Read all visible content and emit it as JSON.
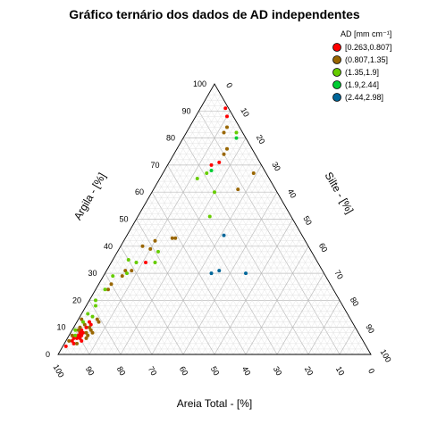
{
  "chart_data": {
    "type": "scatter",
    "subtype": "ternary",
    "title": "Gráfico ternário dos dados de AD independentes",
    "axes": {
      "left": {
        "label": "Argila - [%]",
        "ticks": [
          "0",
          "10",
          "20",
          "30",
          "40",
          "50",
          "60",
          "70",
          "80",
          "90",
          "100"
        ]
      },
      "right": {
        "label": "Silte - [%]",
        "ticks": [
          "0",
          "10",
          "20",
          "30",
          "40",
          "50",
          "60",
          "70",
          "80",
          "90",
          "100"
        ]
      },
      "bottom": {
        "label": "Areia Total - [%]",
        "ticks": [
          "100",
          "90",
          "80",
          "70",
          "60",
          "50",
          "40",
          "30",
          "20",
          "10",
          "0"
        ]
      },
      "range": [
        0,
        100
      ],
      "grid": true
    },
    "legend": {
      "title": "AD [mm cm⁻¹]",
      "placement": "top-right",
      "items": [
        {
          "label": "[0.263,0.807]",
          "color": "#ff0000"
        },
        {
          "label": "(0.807,1.35]",
          "color": "#996600"
        },
        {
          "label": "(1.35,1.9]",
          "color": "#66cc00"
        },
        {
          "label": "(1.9,2.44]",
          "color": "#00cc33"
        },
        {
          "label": "(2.44,2.98]",
          "color": "#006699"
        }
      ]
    },
    "series": [
      {
        "name": "[0.263,0.807]",
        "color": "#ff0000",
        "points": [
          {
            "clay": 91,
            "silt": 8
          },
          {
            "clay": 88,
            "silt": 10
          },
          {
            "clay": 70,
            "silt": 14
          },
          {
            "clay": 71,
            "silt": 16
          },
          {
            "clay": 34,
            "silt": 11
          },
          {
            "clay": 8,
            "silt": 4
          },
          {
            "clay": 7,
            "silt": 3
          },
          {
            "clay": 6,
            "silt": 3
          },
          {
            "clay": 5,
            "silt": 2
          },
          {
            "clay": 6,
            "silt": 2
          },
          {
            "clay": 9,
            "silt": 3
          },
          {
            "clay": 10,
            "silt": 4
          },
          {
            "clay": 12,
            "silt": 4
          },
          {
            "clay": 7,
            "silt": 4
          },
          {
            "clay": 5,
            "silt": 5
          },
          {
            "clay": 11,
            "silt": 5
          },
          {
            "clay": 4,
            "silt": 3
          },
          {
            "clay": 3,
            "silt": 1
          },
          {
            "clay": 6,
            "silt": 4
          },
          {
            "clay": 8,
            "silt": 3
          }
        ]
      },
      {
        "name": "(0.807,1.35]",
        "color": "#996600",
        "points": [
          {
            "clay": 84,
            "silt": 12
          },
          {
            "clay": 82,
            "silt": 12
          },
          {
            "clay": 74,
            "silt": 16
          },
          {
            "clay": 76,
            "silt": 16
          },
          {
            "clay": 61,
            "silt": 27
          },
          {
            "clay": 67,
            "silt": 29
          },
          {
            "clay": 42,
            "silt": 10
          },
          {
            "clay": 39,
            "silt": 10
          },
          {
            "clay": 40,
            "silt": 7
          },
          {
            "clay": 43,
            "silt": 15
          },
          {
            "clay": 43,
            "silt": 16
          },
          {
            "clay": 31,
            "silt": 6
          },
          {
            "clay": 29,
            "silt": 6
          },
          {
            "clay": 31,
            "silt": 8
          },
          {
            "clay": 24,
            "silt": 4
          },
          {
            "clay": 26,
            "silt": 4
          },
          {
            "clay": 13,
            "silt": 1
          },
          {
            "clay": 10,
            "silt": 2
          },
          {
            "clay": 9,
            "silt": 2
          },
          {
            "clay": 8,
            "silt": 5
          },
          {
            "clay": 11,
            "silt": 3
          },
          {
            "clay": 12,
            "silt": 7
          },
          {
            "clay": 7,
            "silt": 1
          },
          {
            "clay": 5,
            "silt": 1
          },
          {
            "clay": 9,
            "silt": 6
          },
          {
            "clay": 6,
            "silt": 6
          },
          {
            "clay": 13,
            "silt": 6
          },
          {
            "clay": 8,
            "silt": 7
          },
          {
            "clay": 4,
            "silt": 4
          },
          {
            "clay": 10,
            "silt": 5
          },
          {
            "clay": 7,
            "silt": 6
          }
        ]
      },
      {
        "name": "(1.35,1.9]",
        "color": "#66cc00",
        "points": [
          {
            "clay": 82,
            "silt": 16
          },
          {
            "clay": 65,
            "silt": 12
          },
          {
            "clay": 67,
            "silt": 14
          },
          {
            "clay": 60,
            "silt": 20
          },
          {
            "clay": 51,
            "silt": 23
          },
          {
            "clay": 38,
            "silt": 13
          },
          {
            "clay": 35,
            "silt": 5
          },
          {
            "clay": 34,
            "silt": 8
          },
          {
            "clay": 34,
            "silt": 14
          },
          {
            "clay": 30,
            "silt": 7
          },
          {
            "clay": 29,
            "silt": 3
          },
          {
            "clay": 24,
            "silt": 3
          },
          {
            "clay": 20,
            "silt": 2
          },
          {
            "clay": 18,
            "silt": 3
          },
          {
            "clay": 15,
            "silt": 2
          },
          {
            "clay": 14,
            "silt": 4
          },
          {
            "clay": 12,
            "silt": 2
          },
          {
            "clay": 9,
            "silt": 1
          },
          {
            "clay": 7,
            "silt": 2
          }
        ]
      },
      {
        "name": "(1.9,2.44]",
        "color": "#00cc33",
        "points": [
          {
            "clay": 80,
            "silt": 17
          },
          {
            "clay": 68,
            "silt": 15
          }
        ]
      },
      {
        "name": "(2.44,2.98]",
        "color": "#006699",
        "points": [
          {
            "clay": 44,
            "silt": 31
          },
          {
            "clay": 30,
            "silt": 34
          },
          {
            "clay": 31,
            "silt": 36
          },
          {
            "clay": 30,
            "silt": 45
          }
        ]
      }
    ]
  }
}
